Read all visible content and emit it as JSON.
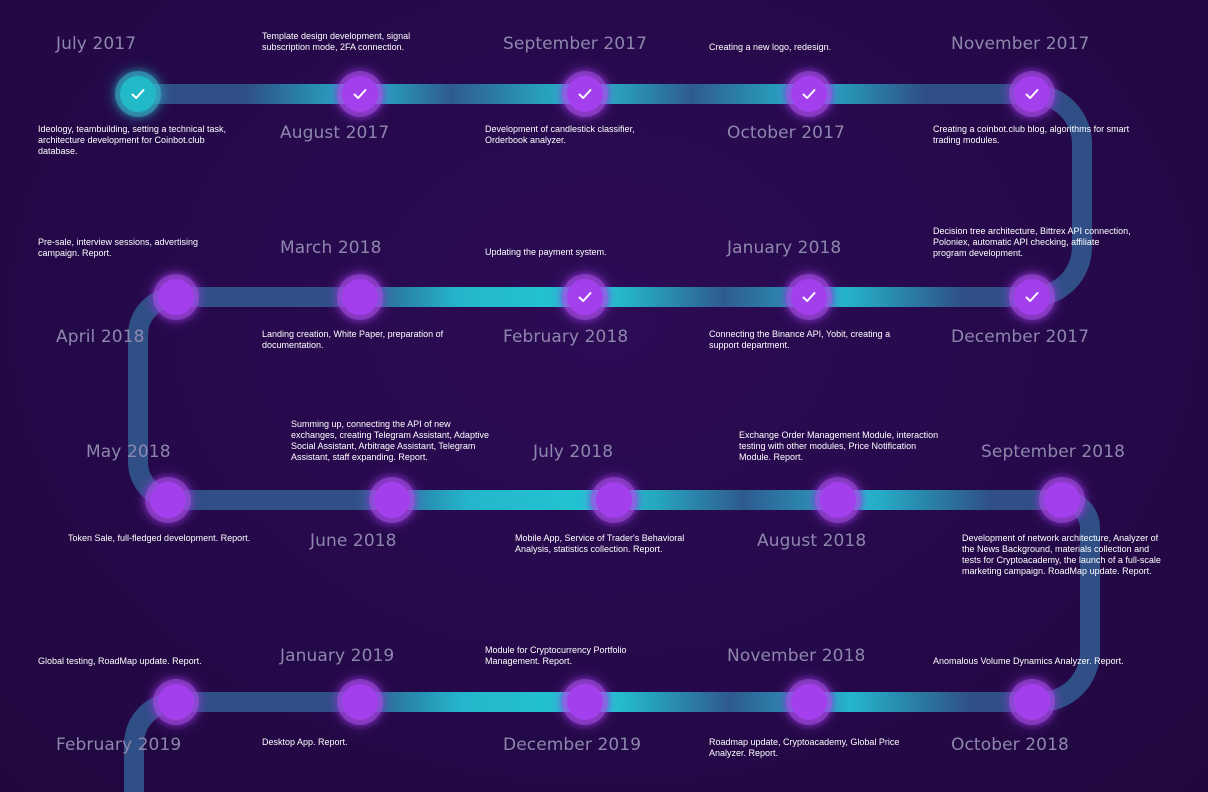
{
  "colors": {
    "background": "#25094a",
    "track_dark": "#2f4f86",
    "track_cyan": "#22c5d0",
    "node_purple": "#a33fec",
    "node_first": "#22b9c9",
    "date_text": "#8e87ad",
    "desc_text": "#ffffff"
  },
  "milestones": [
    {
      "date": "July 2017",
      "desc": "Ideology, teambuilding, setting a technical task, architecture development for Coinbot.club database.",
      "done": true,
      "icon": "check-icon"
    },
    {
      "date": "August 2017",
      "desc": "Template design development, signal subscription mode, 2FA connection.",
      "done": true,
      "icon": "check-icon"
    },
    {
      "date": "September 2017",
      "desc": "Development of candlestick classifier, Orderbook analyzer.",
      "done": true,
      "icon": "check-icon"
    },
    {
      "date": "October 2017",
      "desc": "Creating a new logo, redesign.",
      "done": true,
      "icon": "check-icon"
    },
    {
      "date": "November 2017",
      "desc": "Creating a coinbot.club blog, algorithms for smart trading modules.",
      "done": true,
      "icon": "check-icon"
    },
    {
      "date": "December 2017",
      "desc": "Decision tree architecture, Bittrex API connection, Poloniex, automatic API checking, affiliate program development.",
      "done": true,
      "icon": "check-icon"
    },
    {
      "date": "January 2018",
      "desc": "Connecting the Binance API, Yobit, creating a support department.",
      "done": true,
      "icon": "check-icon"
    },
    {
      "date": "February 2018",
      "desc": "Updating the payment system.",
      "done": true,
      "icon": "check-icon"
    },
    {
      "date": "March 2018",
      "desc": "Landing creation, White Paper, preparation of documentation.",
      "done": false
    },
    {
      "date": "April 2018",
      "desc": "Pre-sale, interview sessions, advertising campaign. Report.",
      "done": false
    },
    {
      "date": "May 2018",
      "desc": "Token Sale, full-fledged development. Report.",
      "done": false
    },
    {
      "date": "June 2018",
      "desc": "Summing up, connecting the API of new exchanges, creating Telegram Assistant, Adaptive Social Assistant, Arbitrage Assistant, Telegram Assistant, staff expanding. Report.",
      "done": false
    },
    {
      "date": "July 2018",
      "desc": "Mobile App, Service of Trader's Behavioral Analysis, statistics collection. Report.",
      "done": false
    },
    {
      "date": "August 2018",
      "desc": "Exchange Order Management Module, interaction testing with other modules, Price Notification Module. Report.",
      "done": false
    },
    {
      "date": "September 2018",
      "desc": "Development of network architecture, Analyzer of the News Background, materials collection and tests for Cryptoacademy, the launch of a full-scale marketing campaign. RoadMap update. Report.",
      "done": false
    },
    {
      "date": "October 2018",
      "desc": "Anomalous Volume Dynamics Analyzer. Report.",
      "done": false
    },
    {
      "date": "November 2018",
      "desc": "Roadmap update, Cryptoacademy, Global Price Analyzer. Report.",
      "done": false
    },
    {
      "date": "December 2019",
      "desc": "Module for Cryptocurrency Portfolio Management. Report.",
      "done": false
    },
    {
      "date": "January 2019",
      "desc": "Desktop App. Report.",
      "done": false
    },
    {
      "date": "February 2019",
      "desc": "Global testing, RoadMap update. Report.",
      "done": false
    }
  ]
}
